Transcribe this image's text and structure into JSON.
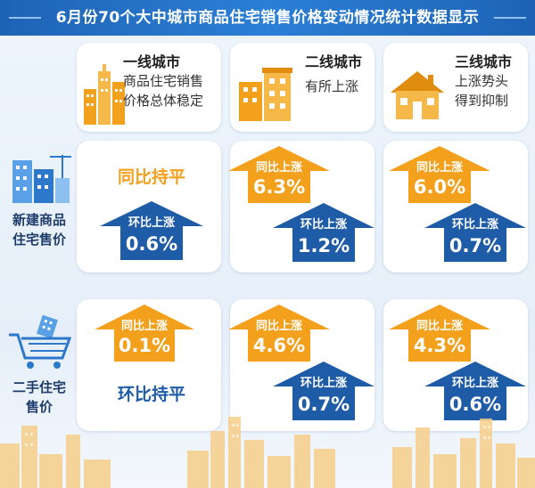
{
  "title": "6月份70个大中城市商品住宅销售价格变动情况统计数据显示",
  "tiers": [
    {
      "name": "一线城市",
      "desc": "商品住宅销售\n价格总体稳定"
    },
    {
      "name": "二线城市",
      "desc": "有所上涨"
    },
    {
      "name": "三线城市",
      "desc": "上涨势头\n得到抑制"
    }
  ],
  "rows": [
    {
      "label": "新建商品\n住宅售价"
    },
    {
      "label": "二手住宅\n售价"
    }
  ],
  "new_homes": {
    "tier1": {
      "yoy_flat": "同比持平",
      "mom_label": "环比上涨",
      "mom_value": "0.6%"
    },
    "tier2": {
      "yoy_label": "同比上涨",
      "yoy_value": "6.3%",
      "mom_label": "环比上涨",
      "mom_value": "1.2%"
    },
    "tier3": {
      "yoy_label": "同比上涨",
      "yoy_value": "6.0%",
      "mom_label": "环比上涨",
      "mom_value": "0.7%"
    }
  },
  "second_hand": {
    "tier1": {
      "yoy_label": "同比上涨",
      "yoy_value": "0.1%",
      "mom_flat": "环比持平"
    },
    "tier2": {
      "yoy_label": "同比上涨",
      "yoy_value": "4.6%",
      "mom_label": "环比上涨",
      "mom_value": "0.7%"
    },
    "tier3": {
      "yoy_label": "同比上涨",
      "yoy_value": "4.3%",
      "mom_label": "环比上涨",
      "mom_value": "0.6%"
    }
  },
  "colors": {
    "orange": "#f3a01c",
    "blue": "#1e5ca8",
    "title_bar": "#1e63b5"
  },
  "icons": [
    "tier1-skyline-icon",
    "tier2-apartment-icon",
    "tier3-house-icon",
    "new-building-icon",
    "shopping-cart-building-icon",
    "city-skyline-icon"
  ]
}
